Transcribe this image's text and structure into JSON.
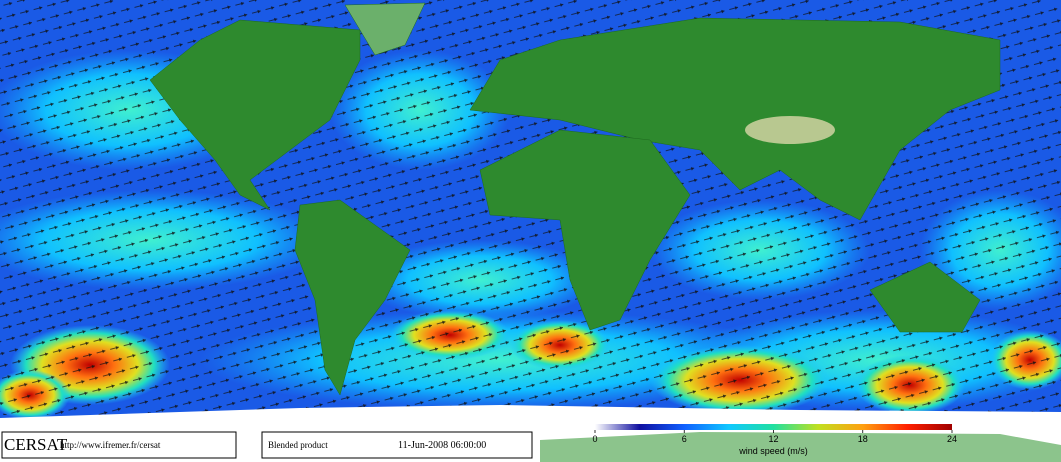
{
  "footer": {
    "logo": "CERSAT",
    "url": "http://www.ifremer.fr/cersat",
    "product": "Blended product",
    "timestamp": "11-Jun-2008 06:00:00"
  },
  "colorbar": {
    "label": "wind speed (m/s)",
    "min": 0,
    "max": 24,
    "ticks": [
      0,
      6,
      12,
      18,
      24
    ],
    "colors": [
      "#ffffff",
      "#1010a0",
      "#1060ff",
      "#10c8ff",
      "#20e0a0",
      "#c0e020",
      "#ffa010",
      "#ff2000",
      "#a00000"
    ]
  }
}
